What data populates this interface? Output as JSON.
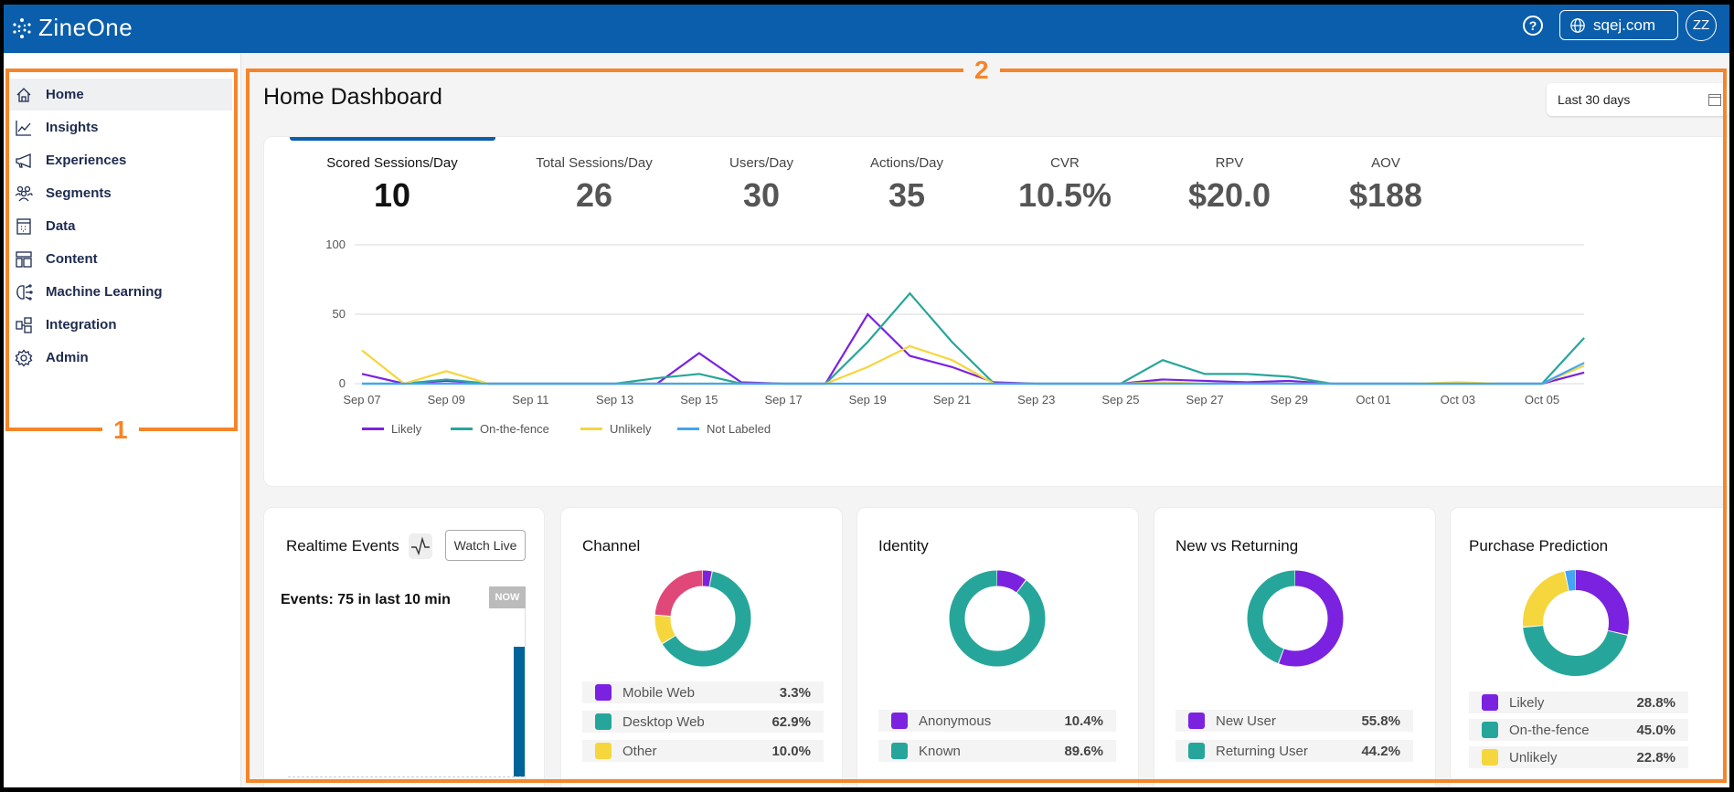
{
  "app": {
    "brand": "ZineOne",
    "domain": "sqej.com",
    "avatar": "ZZ"
  },
  "icons": {
    "help": "help-circle-icon",
    "globe": "globe-icon",
    "calendar": "calendar-icon",
    "pulse": "pulse-icon"
  },
  "sidebar": {
    "items": [
      {
        "label": "Home",
        "icon": "home-icon"
      },
      {
        "label": "Insights",
        "icon": "chart-line-icon"
      },
      {
        "label": "Experiences",
        "icon": "megaphone-icon"
      },
      {
        "label": "Segments",
        "icon": "users-icon"
      },
      {
        "label": "Data",
        "icon": "data-icon"
      },
      {
        "label": "Content",
        "icon": "layout-icon"
      },
      {
        "label": "Machine Learning",
        "icon": "brain-icon"
      },
      {
        "label": "Integration",
        "icon": "integration-icon"
      },
      {
        "label": "Admin",
        "icon": "gear-icon"
      }
    ]
  },
  "annotations": {
    "box1": "1",
    "box2": "2"
  },
  "main": {
    "title": "Home Dashboard",
    "date_range": "Last 30 days",
    "kpis": [
      {
        "label": "Scored Sessions/Day",
        "value": "10"
      },
      {
        "label": "Total Sessions/Day",
        "value": "26"
      },
      {
        "label": "Users/Day",
        "value": "30"
      },
      {
        "label": "Actions/Day",
        "value": "35"
      },
      {
        "label": "CVR",
        "value": "10.5%"
      },
      {
        "label": "RPV",
        "value": "$20.0"
      },
      {
        "label": "AOV",
        "value": "$188"
      }
    ]
  },
  "chart_data": {
    "type": "line",
    "ylim": [
      0,
      100
    ],
    "yticks": [
      0,
      50,
      100
    ],
    "grid": true,
    "legend": "bottom-left",
    "x": [
      "Sep 07",
      "Sep 08",
      "Sep 09",
      "Sep 10",
      "Sep 11",
      "Sep 12",
      "Sep 13",
      "Sep 14",
      "Sep 15",
      "Sep 16",
      "Sep 17",
      "Sep 18",
      "Sep 19",
      "Sep 20",
      "Sep 21",
      "Sep 22",
      "Sep 23",
      "Sep 24",
      "Sep 25",
      "Sep 26",
      "Sep 27",
      "Sep 28",
      "Sep 29",
      "Sep 30",
      "Oct 01",
      "Oct 02",
      "Oct 03",
      "Oct 04",
      "Oct 05",
      "Oct 06"
    ],
    "xticks": [
      "Sep 07",
      "Sep 09",
      "Sep 11",
      "Sep 13",
      "Sep 15",
      "Sep 17",
      "Sep 19",
      "Sep 21",
      "Sep 23",
      "Sep 25",
      "Sep 27",
      "Sep 29",
      "Oct 01",
      "Oct 03",
      "Oct 05"
    ],
    "series": [
      {
        "name": "Likely",
        "color": "#7b22e0",
        "values": [
          7,
          0,
          2,
          0,
          0,
          0,
          0,
          0,
          22,
          1,
          0,
          0,
          50,
          20,
          12,
          1,
          0,
          0,
          0,
          3,
          2,
          1,
          2,
          0,
          0,
          0,
          0,
          0,
          0,
          8
        ]
      },
      {
        "name": "On-the-fence",
        "color": "#26a69a",
        "values": [
          0,
          0,
          3,
          0,
          0,
          0,
          0,
          4,
          7,
          0,
          0,
          0,
          30,
          65,
          30,
          0,
          0,
          0,
          0,
          17,
          7,
          7,
          5,
          0,
          0,
          0,
          0,
          0,
          0,
          33
        ]
      },
      {
        "name": "Unlikely",
        "color": "#f5d63d",
        "values": [
          24,
          0,
          9,
          0,
          0,
          0,
          0,
          0,
          0,
          0,
          0,
          0,
          12,
          27,
          17,
          0,
          0,
          0,
          0,
          1,
          0,
          0,
          0,
          0,
          0,
          0,
          1,
          0,
          0,
          13
        ]
      },
      {
        "name": "Not Labeled",
        "color": "#42a5f5",
        "values": [
          0,
          0,
          0,
          0,
          0,
          0,
          0,
          0,
          0,
          0,
          0,
          0,
          0,
          0,
          0,
          0,
          0,
          0,
          0,
          0,
          0,
          0,
          0,
          0,
          0,
          0,
          0,
          0,
          0,
          15
        ]
      }
    ]
  },
  "realtime": {
    "title": "Realtime Events",
    "watch_live": "Watch Live",
    "events_text": "Events: 75 in last 10 min",
    "now_badge": "NOW",
    "bar_color": "#00649a"
  },
  "donuts": [
    {
      "title": "Channel",
      "segments": [
        {
          "label": "Mobile Web",
          "value": 3.3,
          "display": "3.3%",
          "color": "#7b22e0"
        },
        {
          "label": "Desktop Web",
          "value": 62.9,
          "display": "62.9%",
          "color": "#26a69a"
        },
        {
          "label": "Other",
          "value": 10.0,
          "display": "10.0%",
          "color": "#f5d63d"
        },
        {
          "value": 23.8,
          "color": "#e0487a"
        }
      ]
    },
    {
      "title": "Identity",
      "segments": [
        {
          "label": "Anonymous",
          "value": 10.4,
          "display": "10.4%",
          "color": "#7b22e0"
        },
        {
          "label": "Known",
          "value": 89.6,
          "display": "89.6%",
          "color": "#26a69a"
        }
      ]
    },
    {
      "title": "New vs Returning",
      "segments": [
        {
          "label": "New User",
          "value": 55.8,
          "display": "55.8%",
          "color": "#7b22e0"
        },
        {
          "label": "Returning User",
          "value": 44.2,
          "display": "44.2%",
          "color": "#26a69a"
        }
      ]
    },
    {
      "title": "Purchase Prediction",
      "segments": [
        {
          "label": "Likely",
          "value": 28.8,
          "display": "28.8%",
          "color": "#7b22e0"
        },
        {
          "label": "On-the-fence",
          "value": 45.0,
          "display": "45.0%",
          "color": "#26a69a"
        },
        {
          "label": "Unlikely",
          "value": 22.8,
          "display": "22.8%",
          "color": "#f5d63d"
        },
        {
          "value": 3.4,
          "color": "#42a5f5"
        }
      ]
    }
  ]
}
